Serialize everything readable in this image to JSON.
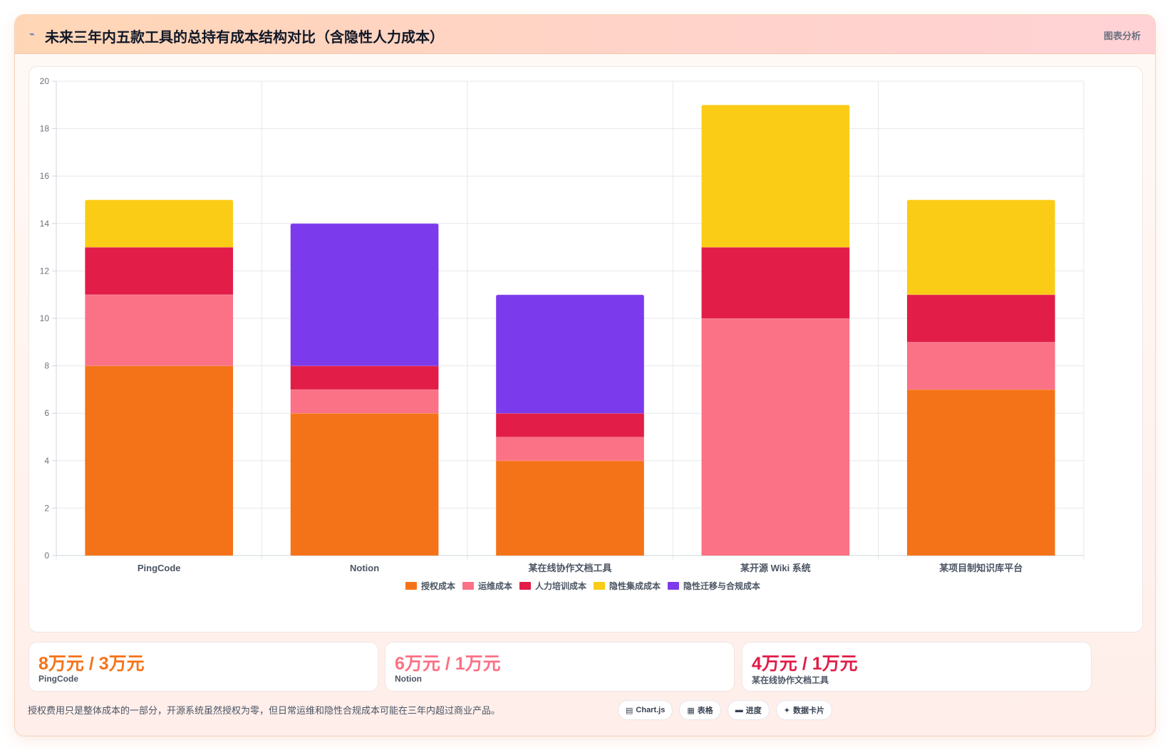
{
  "header": {
    "icon": "⌁",
    "title": "未来三年内五款工具的总持有成本结构对比（含隐性人力成本）",
    "tag": "图表分析"
  },
  "chart_data": {
    "type": "bar",
    "stacked": true,
    "categories": [
      "PingCode",
      "Notion",
      "某在线协作文档工具",
      "某开源 Wiki 系统",
      "某项目制知识库平台"
    ],
    "series": [
      {
        "name": "授权成本",
        "color": "#f57318",
        "values": [
          8,
          6,
          4,
          0,
          7
        ]
      },
      {
        "name": "运维成本",
        "color": "#fb7185",
        "values": [
          3,
          1,
          1,
          10,
          2
        ]
      },
      {
        "name": "人力培训成本",
        "color": "#e11d48",
        "values": [
          2,
          1,
          1,
          3,
          2
        ]
      },
      {
        "name": "隐性集成成本",
        "color": "#facc15",
        "values": [
          2,
          0,
          0,
          6,
          4
        ]
      },
      {
        "name": "隐性迁移与合规成本",
        "color": "#7c3aed",
        "values": [
          0,
          6,
          5,
          0,
          0
        ]
      }
    ],
    "ylim": [
      0,
      20
    ],
    "yticks": [
      0,
      2,
      4,
      6,
      8,
      10,
      12,
      14,
      16,
      18,
      20
    ],
    "grid": true,
    "legend_position": "bottom"
  },
  "stats": [
    {
      "value": "8万元 / 3万元",
      "label": "PingCode",
      "color": "#f57318"
    },
    {
      "value": "6万元 / 1万元",
      "label": "Notion",
      "color": "#fb7185"
    },
    {
      "value": "4万元 / 1万元",
      "label": "某在线协作文档工具",
      "color": "#e11d48"
    }
  ],
  "footnote": "授权费用只是整体成本的一部分，开源系统虽然授权为零，但日常运维和隐性合规成本可能在三年内超过商业产品。",
  "chips": [
    {
      "icon": "▤",
      "label": "Chart.js"
    },
    {
      "icon": "▦",
      "label": "表格"
    },
    {
      "icon": "▬",
      "label": "进度"
    },
    {
      "icon": "✦",
      "label": "数据卡片"
    }
  ]
}
